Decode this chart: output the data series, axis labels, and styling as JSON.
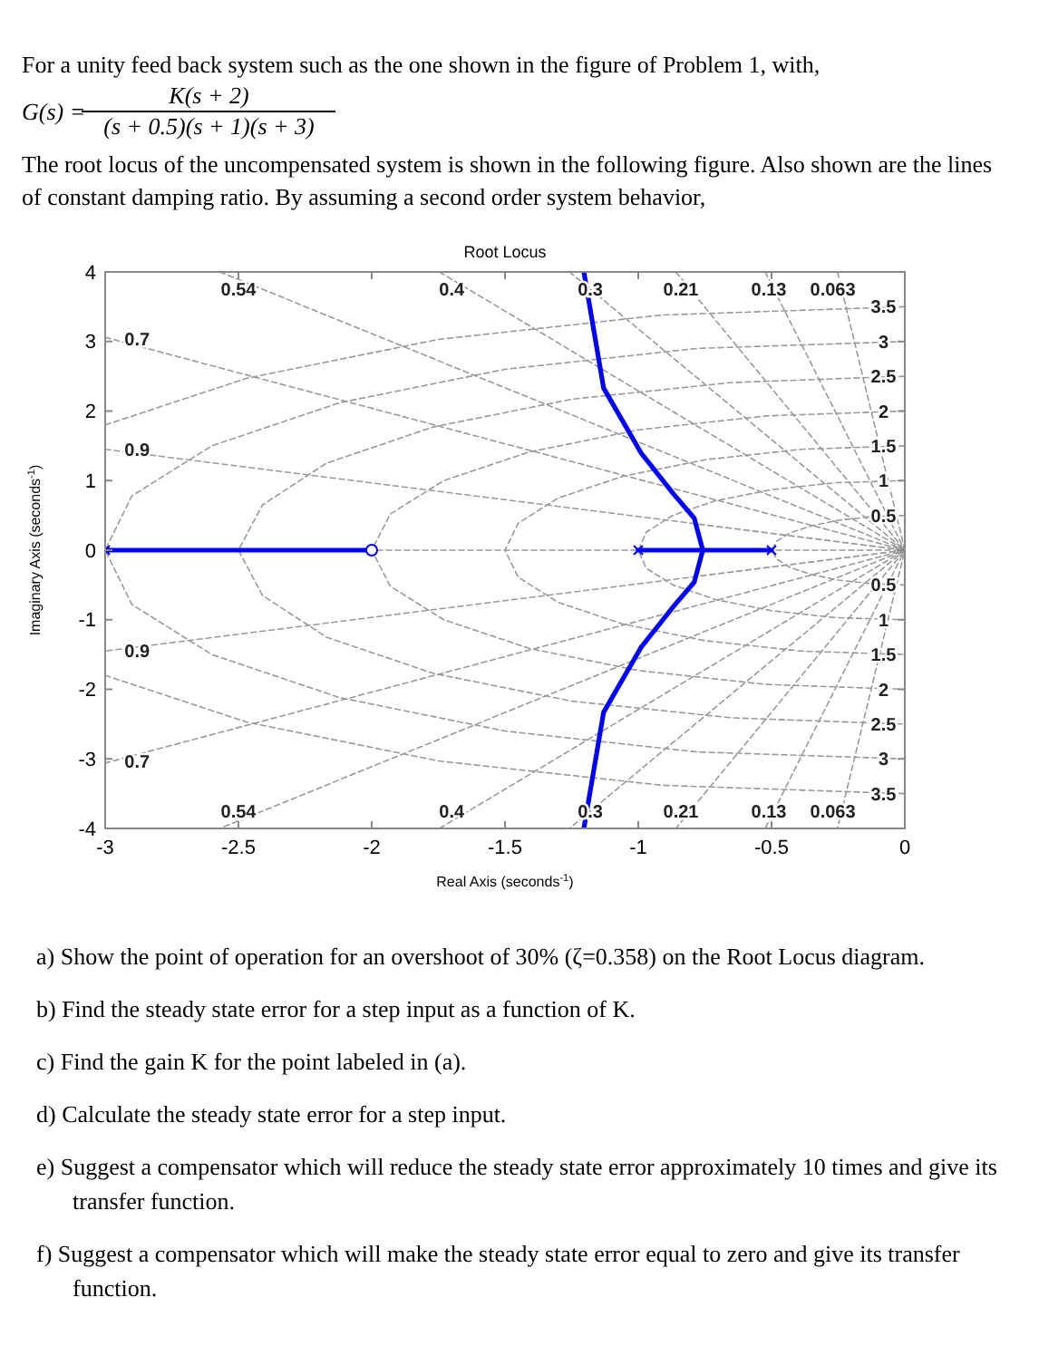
{
  "chart_data": {
    "type": "line",
    "title": "Root Locus",
    "xlabel": "Real Axis (seconds$^{-1}$)",
    "ylabel": "Imaginary Axis (seconds$^{-1}$)",
    "xlim": [
      -3,
      0
    ],
    "ylim": [
      -4,
      4
    ],
    "xticks": [
      -3,
      -2.5,
      -2,
      -1.5,
      -1,
      -0.5,
      0
    ],
    "yticks": [
      -4,
      -3,
      -2,
      -1,
      0,
      1,
      2,
      3,
      4
    ],
    "series": [
      {
        "color": "#999999",
        "line_style": "dashed",
        "x": [
          -3,
          0
        ],
        "values": [
          0,
          0
        ]
      },
      {
        "color": "#999999",
        "line_style": "dashed",
        "x": [
          -3,
          0,
          -3
        ],
        "values": [
          1.45,
          0,
          -1.45
        ]
      },
      {
        "color": "#999999",
        "line_style": "dashed",
        "x": [
          -3,
          0,
          -3
        ],
        "values": [
          3.06,
          0,
          -3.06
        ]
      },
      {
        "color": "#999999",
        "line_style": "dashed",
        "x": [
          -2.57,
          0,
          -2.57
        ],
        "values": [
          4,
          0,
          -4
        ]
      },
      {
        "color": "#999999",
        "line_style": "dashed",
        "x": [
          -1.746,
          0,
          -1.746
        ],
        "values": [
          4,
          0,
          -4
        ]
      },
      {
        "color": "#999999",
        "line_style": "dashed",
        "x": [
          -1.258,
          0,
          -1.258
        ],
        "values": [
          4,
          0,
          -4
        ]
      },
      {
        "color": "#999999",
        "line_style": "dashed",
        "x": [
          -0.859,
          0,
          -0.859
        ],
        "values": [
          4,
          0,
          -4
        ]
      },
      {
        "color": "#999999",
        "line_style": "dashed",
        "x": [
          -0.524,
          0,
          -0.524
        ],
        "values": [
          4,
          0,
          -4
        ]
      },
      {
        "color": "#999999",
        "line_style": "dashed",
        "x": [
          -0.2525,
          0,
          -0.2525
        ],
        "values": [
          4,
          0,
          -4
        ]
      },
      {
        "color": "#999999",
        "line_style": "dashed",
        "x": [
          0,
          -0.13,
          -0.25,
          -0.35,
          -0.43,
          -0.48,
          -0.5,
          -0.48,
          -0.43,
          -0.35,
          -0.25,
          -0.13,
          0
        ],
        "values": [
          0.5,
          0.48,
          0.43,
          0.35,
          0.25,
          0.13,
          0,
          -0.13,
          -0.25,
          -0.35,
          -0.43,
          -0.48,
          -0.5
        ]
      },
      {
        "color": "#999999",
        "line_style": "dashed",
        "x": [
          0,
          -0.26,
          -0.5,
          -0.71,
          -0.87,
          -0.97,
          -1,
          -0.97,
          -0.87,
          -0.71,
          -0.5,
          -0.26,
          0
        ],
        "values": [
          1,
          0.97,
          0.87,
          0.71,
          0.5,
          0.26,
          0,
          -0.26,
          -0.5,
          -0.71,
          -0.87,
          -0.97,
          -1
        ]
      },
      {
        "color": "#999999",
        "line_style": "dashed",
        "x": [
          0,
          -0.39,
          -0.75,
          -1.06,
          -1.3,
          -1.45,
          -1.5,
          -1.45,
          -1.3,
          -1.06,
          -0.75,
          -0.39,
          0
        ],
        "values": [
          1.5,
          1.45,
          1.3,
          1.06,
          0.75,
          0.39,
          0,
          -0.39,
          -0.75,
          -1.06,
          -1.3,
          -1.45,
          -1.5
        ]
      },
      {
        "color": "#999999",
        "line_style": "dashed",
        "x": [
          0,
          -0.52,
          -1,
          -1.41,
          -1.73,
          -1.93,
          -2,
          -1.93,
          -1.73,
          -1.41,
          -1,
          -0.52,
          0
        ],
        "values": [
          2,
          1.93,
          1.73,
          1.41,
          1,
          0.52,
          0,
          -0.52,
          -1,
          -1.41,
          -1.73,
          -1.93,
          -2
        ]
      },
      {
        "color": "#999999",
        "line_style": "dashed",
        "x": [
          0,
          -0.65,
          -1.25,
          -1.77,
          -2.17,
          -2.41,
          -2.5,
          -2.41,
          -2.17,
          -1.77,
          -1.25,
          -0.65,
          0
        ],
        "values": [
          2.5,
          2.41,
          2.17,
          1.77,
          1.25,
          0.65,
          0,
          -0.65,
          -1.25,
          -1.77,
          -2.17,
          -2.41,
          -2.5
        ]
      },
      {
        "color": "#999999",
        "line_style": "dashed",
        "x": [
          0,
          -0.78,
          -1.5,
          -2.12,
          -2.6,
          -2.9,
          -3,
          -2.9,
          -2.6,
          -2.12,
          -1.5,
          -0.78,
          0
        ],
        "values": [
          3,
          2.9,
          2.6,
          2.12,
          1.5,
          0.78,
          0,
          -0.78,
          -1.5,
          -2.12,
          -2.6,
          -2.9,
          -3
        ]
      },
      {
        "color": "#999999",
        "line_style": "dashed",
        "x": [
          0,
          -0.91,
          -1.75,
          -2.47,
          -3,
          null,
          -3,
          -2.47,
          -1.75,
          -0.91,
          0
        ],
        "values": [
          3.5,
          3.38,
          3.03,
          2.47,
          1.8,
          null,
          -1.8,
          -2.47,
          -3.03,
          -3.38,
          -3.5
        ]
      },
      {
        "color": "#0000ff",
        "line_style": "solid",
        "x": [
          -3,
          -2
        ],
        "values": [
          0,
          0
        ]
      },
      {
        "color": "#0000ff",
        "line_style": "solid",
        "x": [
          -1,
          -0.5
        ],
        "values": [
          0,
          0
        ]
      },
      {
        "color": "#0000ff",
        "line_style": "solid",
        "x": [
          -1.204,
          -1.13,
          -0.99,
          -0.868,
          -0.79,
          -0.758,
          -0.79,
          -0.868,
          -0.99,
          -1.13,
          -1.204
        ],
        "values": [
          4,
          2.33,
          1.4,
          0.81,
          0.46,
          0,
          -0.46,
          -0.81,
          -1.4,
          -2.33,
          -4
        ]
      },
      {
        "type": "scatter",
        "marker": "circle",
        "color": "#0000ff",
        "x": [
          -2
        ],
        "values": [
          0
        ]
      },
      {
        "type": "scatter",
        "marker": "cross",
        "color": "#0000ff",
        "x": [
          -3,
          -1,
          -0.5
        ],
        "values": [
          0,
          0,
          0
        ]
      }
    ],
    "annotations": [
      "For a unity feed back system such as the one shown in the figure of Problem 1, with,",
      "G(s) =",
      "K(s + 2)",
      "(s + 0.5)(s + 1)(s + 3)",
      "The root locus of the uncompensated system is shown in the following figure. Also shown are the lines of constant damping ratio. By assuming a second order system behavior,",
      "a) Show the point of operation for an overshoot of 30% (ζ=0.358) on the Root Locus diagram.",
      "b) Find the  steady state error for a step input  as a function of K.",
      "c) Find the gain K for the point labeled in (a).",
      "d) Calculate the steady state error for a step input.",
      "e) Suggest a compensator which will reduce the steady state error approximately 10 times  and give its transfer function.",
      "f) Suggest a compensator which will make the steady state error equal to zero and give its transfer function.",
      {
        "text": "0.54",
        "x": -2.5,
        "y": 3.75
      },
      {
        "text": "0.4",
        "x": -1.7,
        "y": 3.75
      },
      {
        "text": "0.3",
        "x": -1.18,
        "y": 3.75
      },
      {
        "text": "0.21",
        "x": -0.84,
        "y": 3.75
      },
      {
        "text": "0.13",
        "x": -0.51,
        "y": 3.75
      },
      {
        "text": "0.063",
        "x": -0.27,
        "y": 3.75
      },
      {
        "text": "0.7",
        "x": -2.88,
        "y": 3.03
      },
      {
        "text": "0.9",
        "x": -2.88,
        "y": 1.45
      },
      {
        "text": "0.54",
        "x": -2.5,
        "y": -3.75
      },
      {
        "text": "0.4",
        "x": -1.7,
        "y": -3.75
      },
      {
        "text": "0.3",
        "x": -1.18,
        "y": -3.75
      },
      {
        "text": "0.21",
        "x": -0.84,
        "y": -3.75
      },
      {
        "text": "0.13",
        "x": -0.51,
        "y": -3.75
      },
      {
        "text": "0.063",
        "x": -0.27,
        "y": -3.75
      },
      {
        "text": "0.7",
        "x": -2.88,
        "y": -3.03
      },
      {
        "text": "0.9",
        "x": -2.88,
        "y": -1.45
      },
      {
        "text": "3.5",
        "x": -0.08,
        "y": 3.5
      },
      {
        "text": "3",
        "x": -0.08,
        "y": 3
      },
      {
        "text": "2.5",
        "x": -0.08,
        "y": 2.5
      },
      {
        "text": "2",
        "x": -0.08,
        "y": 2
      },
      {
        "text": "1.5",
        "x": -0.08,
        "y": 1.5
      },
      {
        "text": "1",
        "x": -0.08,
        "y": 1
      },
      {
        "text": "0.5",
        "x": -0.08,
        "y": 0.5
      },
      {
        "text": "0.5",
        "x": -0.08,
        "y": -0.5
      },
      {
        "text": "1",
        "x": -0.08,
        "y": -1
      },
      {
        "text": "1.5",
        "x": -0.08,
        "y": -1.5
      },
      {
        "text": "2",
        "x": -0.08,
        "y": -2
      },
      {
        "text": "2.5",
        "x": -0.08,
        "y": -2.5
      },
      {
        "text": "3",
        "x": -0.08,
        "y": -3
      },
      {
        "text": "3.5",
        "x": -0.08,
        "y": -3.5
      }
    ]
  }
}
